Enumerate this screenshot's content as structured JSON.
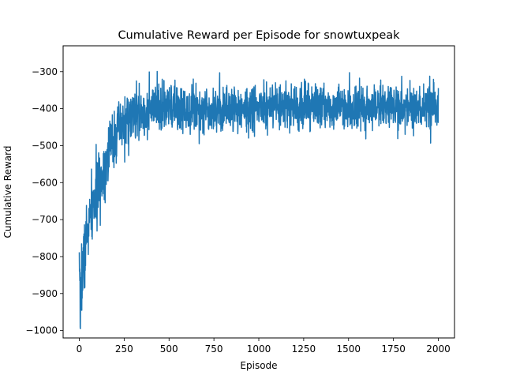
{
  "chart_data": {
    "type": "line",
    "title": "Cumulative Reward per Episode for snowtuxpeak",
    "xlabel": "Episode",
    "ylabel": "Cumulative Reward",
    "xlim": [
      -90,
      2090
    ],
    "ylim": [
      -1020,
      -230
    ],
    "xticks": [
      0,
      250,
      500,
      750,
      1000,
      1250,
      1500,
      1750,
      2000
    ],
    "yticks": [
      -1000,
      -900,
      -800,
      -700,
      -600,
      -500,
      -400,
      -300
    ],
    "grid": false,
    "legend": "none",
    "series": [
      {
        "color": "#1f77b4",
        "anchors": [
          [
            0,
            -860
          ],
          [
            5,
            -980
          ],
          [
            10,
            -870
          ],
          [
            20,
            -820
          ],
          [
            30,
            -800
          ],
          [
            40,
            -740
          ],
          [
            60,
            -700
          ],
          [
            80,
            -660
          ],
          [
            100,
            -620
          ],
          [
            130,
            -580
          ],
          [
            160,
            -520
          ],
          [
            200,
            -470
          ],
          [
            250,
            -440
          ],
          [
            300,
            -420
          ],
          [
            400,
            -405
          ],
          [
            500,
            -400
          ],
          [
            750,
            -400
          ],
          [
            1000,
            -400
          ],
          [
            1250,
            -395
          ],
          [
            1500,
            -395
          ],
          [
            1750,
            -395
          ],
          [
            2000,
            -395
          ]
        ],
        "noise_start": 90,
        "noise_end": 55,
        "noise_decay": 250,
        "n_points": 2000,
        "seed": 7
      }
    ]
  }
}
